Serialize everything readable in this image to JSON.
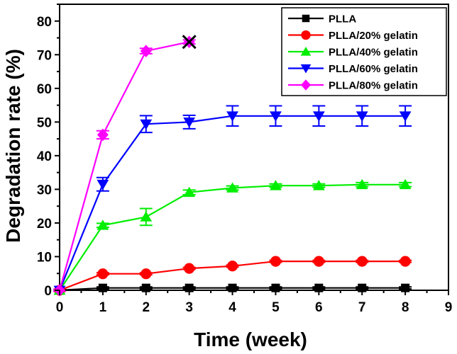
{
  "chart_data": {
    "type": "line",
    "xlabel": "Time (week)",
    "ylabel": "Degradation rate (%)",
    "xlim": [
      0,
      9
    ],
    "ylim": [
      0,
      85
    ],
    "xticks": [
      "0",
      "1",
      "2",
      "3",
      "4",
      "5",
      "6",
      "7",
      "8",
      "9"
    ],
    "yticks": [
      "0",
      "10",
      "20",
      "30",
      "40",
      "50",
      "60",
      "70",
      "80"
    ],
    "grid": false,
    "legend_position": "top-right",
    "series": [
      {
        "name": "PLLA",
        "color": "#000000",
        "marker": "square",
        "x": [
          0,
          1,
          2,
          3,
          4,
          5,
          6,
          7,
          8
        ],
        "y": [
          0,
          0.7,
          0.7,
          0.7,
          0.7,
          0.7,
          0.7,
          0.7,
          0.7
        ],
        "err": [
          0.3,
          0.3,
          0.3,
          0.3,
          0.3,
          0.3,
          0.3,
          0.3,
          0.3
        ]
      },
      {
        "name": "PLLA/20% gelatin",
        "color": "#ff0000",
        "marker": "circle",
        "x": [
          0,
          1,
          2,
          3,
          4,
          5,
          6,
          7,
          8
        ],
        "y": [
          0,
          4.9,
          4.9,
          6.5,
          7.2,
          8.6,
          8.6,
          8.6,
          8.6
        ],
        "err": [
          0.3,
          0.3,
          0.3,
          0.3,
          0.3,
          0.3,
          0.3,
          0.3,
          0.3
        ]
      },
      {
        "name": "PLLA/40% gelatin",
        "color": "#00ee00",
        "marker": "triangle-up",
        "x": [
          0,
          1,
          2,
          3,
          4,
          5,
          6,
          7,
          8
        ],
        "y": [
          0,
          19.3,
          21.8,
          29.1,
          30.4,
          31.1,
          31.1,
          31.4,
          31.4
        ],
        "err": [
          0.3,
          0.6,
          2.5,
          0.7,
          0.6,
          0.5,
          0.5,
          0.6,
          0.6
        ]
      },
      {
        "name": "PLLA/60% gelatin",
        "color": "#0000ff",
        "marker": "triangle-down",
        "x": [
          0,
          1,
          2,
          3,
          4,
          5,
          6,
          7,
          8
        ],
        "y": [
          0,
          31.5,
          49.4,
          50,
          51.8,
          51.8,
          51.8,
          51.8,
          51.8
        ],
        "err": [
          0.3,
          2,
          2.5,
          2,
          3,
          3,
          3,
          3,
          3
        ]
      },
      {
        "name": "PLLA/80% gelatin",
        "color": "#ff00ff",
        "marker": "diamond",
        "x": [
          0,
          1,
          2,
          3
        ],
        "y": [
          0,
          46.2,
          71.1,
          73.8
        ],
        "err": [
          0.3,
          1.2,
          0.8,
          0.6
        ]
      }
    ],
    "annotations": [
      {
        "type": "cross-marker",
        "x": 3,
        "y": 73.8,
        "color": "#000000"
      }
    ]
  }
}
